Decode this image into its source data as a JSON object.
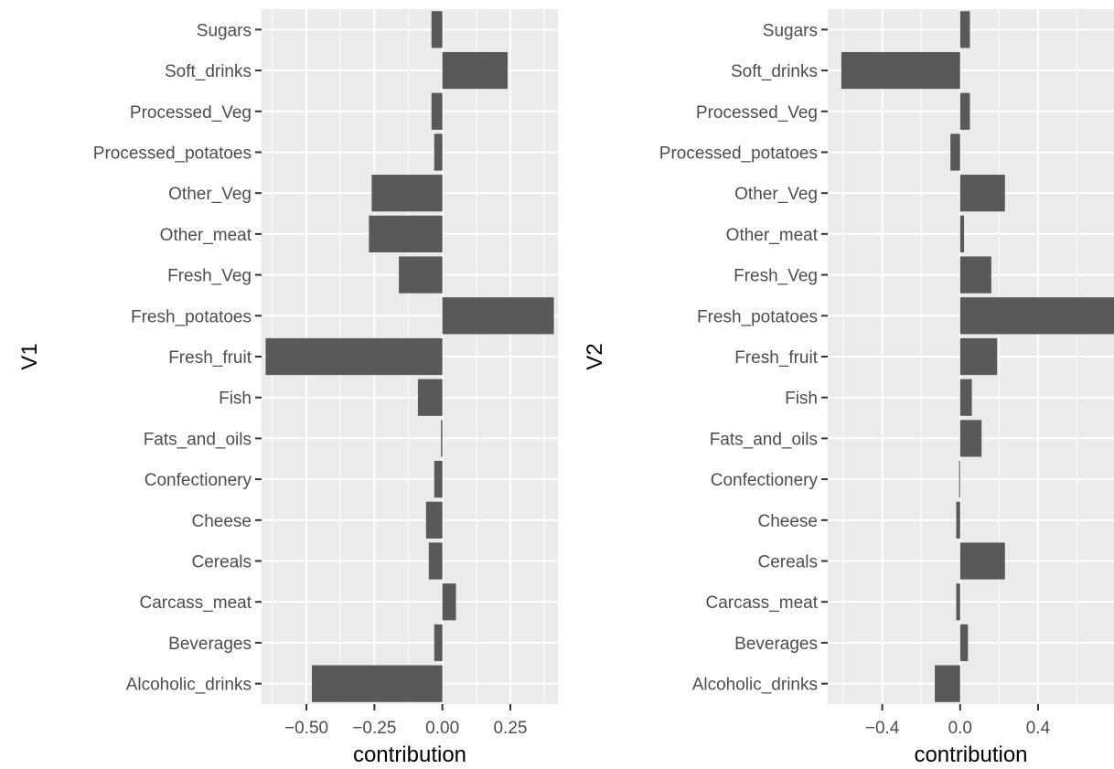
{
  "chart_data": [
    {
      "type": "bar",
      "orientation": "horizontal",
      "ylabel": "V1",
      "xlabel": "contribution",
      "xlim": [
        -0.665,
        0.425
      ],
      "xticks": [
        -0.5,
        -0.25,
        0.0,
        0.25
      ],
      "xtick_labels": [
        "−0.50",
        "−0.25",
        "0.00",
        "0.25"
      ],
      "categories": [
        "Sugars",
        "Soft_drinks",
        "Processed_Veg",
        "Processed_potatoes",
        "Other_Veg",
        "Other_meat",
        "Fresh_Veg",
        "Fresh_potatoes",
        "Fresh_fruit",
        "Fish",
        "Fats_and_oils",
        "Confectionery",
        "Cheese",
        "Cereals",
        "Carcass_meat",
        "Beverages",
        "Alcoholic_drinks"
      ],
      "values": [
        -0.04,
        0.24,
        -0.04,
        -0.03,
        -0.26,
        -0.27,
        -0.16,
        0.41,
        -0.65,
        -0.09,
        -0.005,
        -0.03,
        -0.06,
        -0.05,
        0.05,
        -0.03,
        -0.48
      ],
      "grid": true,
      "bar_color": "#595959",
      "panel_color": "#ebebeb"
    },
    {
      "type": "bar",
      "orientation": "horizontal",
      "ylabel": "V2",
      "xlabel": "contribution",
      "xlim": [
        -0.68,
        0.79
      ],
      "xticks": [
        -0.4,
        0.0,
        0.4
      ],
      "xtick_labels": [
        "−0.4",
        "0.0",
        "0.4"
      ],
      "categories": [
        "Sugars",
        "Soft_drinks",
        "Processed_Veg",
        "Processed_potatoes",
        "Other_Veg",
        "Other_meat",
        "Fresh_Veg",
        "Fresh_potatoes",
        "Fresh_fruit",
        "Fish",
        "Fats_and_oils",
        "Confectionery",
        "Cheese",
        "Cereals",
        "Carcass_meat",
        "Beverages",
        "Alcoholic_drinks"
      ],
      "values": [
        0.05,
        -0.61,
        0.05,
        -0.05,
        0.23,
        0.02,
        0.16,
        0.79,
        0.19,
        0.06,
        0.11,
        -0.005,
        -0.02,
        0.23,
        -0.02,
        0.04,
        -0.13
      ],
      "grid": true,
      "bar_color": "#595959",
      "panel_color": "#ebebeb"
    }
  ]
}
